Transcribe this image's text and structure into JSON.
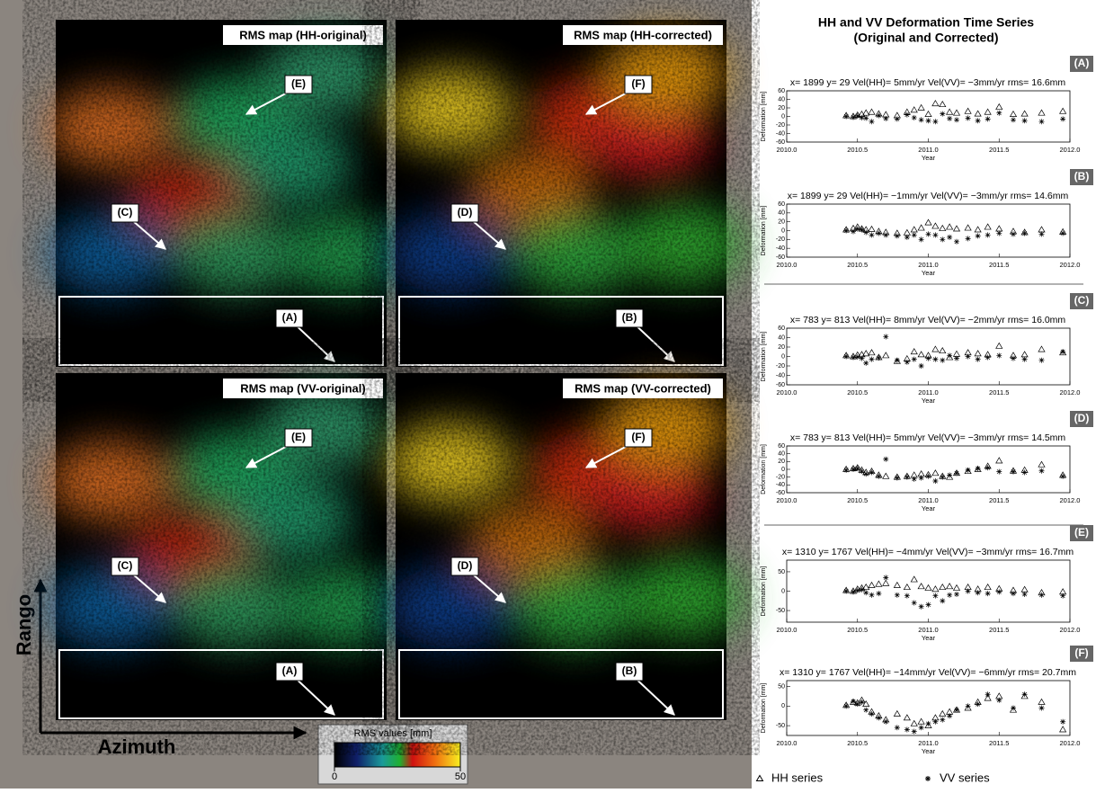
{
  "maps": {
    "panels": [
      {
        "title": "RMS map (HH-original)",
        "labels": [
          "(E)",
          "(C)",
          "(A)"
        ]
      },
      {
        "title": "RMS map (HH-corrected)",
        "labels": [
          "(F)",
          "(D)",
          "(B)"
        ]
      },
      {
        "title": "RMS map (VV-original)",
        "labels": [
          "(E)",
          "(C)",
          "(A)"
        ]
      },
      {
        "title": "RMS map (VV-corrected)",
        "labels": [
          "(F)",
          "(D)",
          "(B)"
        ]
      }
    ],
    "axis_labels": {
      "vertical": "Rango",
      "horizontal": "Azimuth"
    },
    "colorbar": {
      "title": "RMS values [mm]",
      "lim": [
        0,
        50
      ],
      "ticks": [
        0,
        50
      ]
    }
  },
  "figure": {
    "title": "HH and VV Deformation Time Series",
    "subtitle": "(Original and Corrected)"
  },
  "chart_data": [
    {
      "type": "scatter",
      "panel_label": "(A)",
      "title": "x= 1899 y= 29 Vel(HH)= 5mm/yr Vel(VV)= −3mm/yr rms= 16.6mm",
      "xlabel": "Year",
      "ylabel": "Deformation [mm]",
      "x": [
        2010.42,
        2010.47,
        2010.5,
        2010.53,
        2010.56,
        2010.6,
        2010.65,
        2010.7,
        2010.78,
        2010.85,
        2010.9,
        2010.95,
        2011.0,
        2011.05,
        2011.1,
        2011.15,
        2011.2,
        2011.28,
        2011.35,
        2011.42,
        2011.5,
        2011.6,
        2011.68,
        2011.8,
        2011.95
      ],
      "xlim": [
        2010,
        2012
      ],
      "xticks": [
        {
          "value": 2010,
          "label": "2010.0"
        },
        2010.5,
        {
          "value": 2011,
          "label": "2011.0"
        },
        2011.5,
        {
          "value": 2012,
          "label": "2012.0"
        }
      ],
      "ylim": [
        -60,
        60
      ],
      "yticks": [
        -60,
        -40,
        -20,
        0,
        20,
        40,
        60
      ],
      "series": [
        {
          "name": "HH series",
          "marker": "triangle",
          "values": [
            2,
            0,
            3,
            5,
            8,
            10,
            6,
            4,
            2,
            10,
            15,
            20,
            5,
            30,
            28,
            10,
            8,
            12,
            6,
            10,
            22,
            5,
            6,
            8,
            12
          ]
        },
        {
          "name": "VV series",
          "marker": "star",
          "values": [
            0,
            -2,
            1,
            -3,
            -4,
            -12,
            2,
            -5,
            -6,
            4,
            -3,
            -8,
            -10,
            -12,
            6,
            -5,
            -8,
            -4,
            -10,
            -6,
            8,
            -8,
            -10,
            -12,
            -6
          ]
        }
      ]
    },
    {
      "type": "scatter",
      "panel_label": "(B)",
      "title": "x= 1899 y= 29 Vel(HH)= −1mm/yr Vel(VV)= −3mm/yr rms= 14.6mm",
      "xlabel": "Year",
      "ylabel": "Deformation [mm]",
      "x": [
        2010.42,
        2010.47,
        2010.5,
        2010.53,
        2010.56,
        2010.6,
        2010.65,
        2010.7,
        2010.78,
        2010.85,
        2010.9,
        2010.95,
        2011.0,
        2011.05,
        2011.1,
        2011.15,
        2011.2,
        2011.28,
        2011.35,
        2011.42,
        2011.5,
        2011.6,
        2011.68,
        2011.8,
        2011.95
      ],
      "xlim": [
        2010,
        2012
      ],
      "xticks": [
        {
          "value": 2010,
          "label": "2010.0"
        },
        2010.5,
        {
          "value": 2011,
          "label": "2011.0"
        },
        2011.5,
        {
          "value": 2012,
          "label": "2012.0"
        }
      ],
      "ylim": [
        -60,
        60
      ],
      "yticks": [
        -60,
        -40,
        -20,
        0,
        20,
        40,
        60
      ],
      "series": [
        {
          "name": "HH series",
          "marker": "triangle",
          "values": [
            2,
            5,
            8,
            4,
            2,
            3,
            -2,
            -4,
            -6,
            -5,
            2,
            6,
            18,
            10,
            5,
            8,
            4,
            6,
            2,
            8,
            4,
            -2,
            -4,
            2,
            -3
          ]
        },
        {
          "name": "VV series",
          "marker": "star",
          "values": [
            0,
            -2,
            4,
            2,
            -4,
            -10,
            -6,
            -10,
            -12,
            -15,
            -10,
            -20,
            -8,
            -10,
            -20,
            -15,
            -25,
            -18,
            -12,
            -10,
            -6,
            -8,
            -6,
            -8,
            -6
          ]
        }
      ]
    },
    {
      "type": "scatter",
      "panel_label": "(C)",
      "title": "x= 783 y= 813 Vel(HH)= 8mm/yr Vel(VV)= −2mm/yr rms= 16.0mm",
      "xlabel": "Year",
      "ylabel": "Deformation [mm]",
      "x": [
        2010.42,
        2010.47,
        2010.5,
        2010.53,
        2010.56,
        2010.6,
        2010.65,
        2010.7,
        2010.78,
        2010.85,
        2010.9,
        2010.95,
        2011.0,
        2011.05,
        2011.1,
        2011.15,
        2011.2,
        2011.28,
        2011.35,
        2011.42,
        2011.5,
        2011.6,
        2011.68,
        2011.8,
        2011.95
      ],
      "xlim": [
        2010,
        2012
      ],
      "xticks": [
        {
          "value": 2010,
          "label": "2010.0"
        },
        2010.5,
        {
          "value": 2011,
          "label": "2011.0"
        },
        2011.5,
        {
          "value": 2012,
          "label": "2012.0"
        }
      ],
      "ylim": [
        -60,
        60
      ],
      "yticks": [
        -60,
        -40,
        -20,
        0,
        20,
        40,
        60
      ],
      "series": [
        {
          "name": "HH series",
          "marker": "triangle",
          "values": [
            2,
            0,
            3,
            4,
            6,
            8,
            -2,
            2,
            -10,
            -5,
            10,
            4,
            2,
            15,
            12,
            -2,
            5,
            8,
            6,
            4,
            22,
            2,
            4,
            15,
            8
          ]
        },
        {
          "name": "VV series",
          "marker": "star",
          "values": [
            0,
            -2,
            -1,
            -4,
            -14,
            -6,
            -3,
            42,
            -8,
            -12,
            -6,
            -20,
            -4,
            -6,
            -8,
            2,
            -4,
            0,
            -6,
            -2,
            2,
            -4,
            -6,
            -8,
            10
          ]
        }
      ]
    },
    {
      "type": "scatter",
      "panel_label": "(D)",
      "title": "x= 783 y= 813 Vel(HH)= 5mm/yr Vel(VV)= −3mm/yr rms= 14.5mm",
      "xlabel": "Year",
      "ylabel": "Deformation [mm]",
      "x": [
        2010.42,
        2010.47,
        2010.5,
        2010.53,
        2010.56,
        2010.6,
        2010.65,
        2010.7,
        2010.78,
        2010.85,
        2010.9,
        2010.95,
        2011.0,
        2011.05,
        2011.1,
        2011.15,
        2011.2,
        2011.28,
        2011.35,
        2011.42,
        2011.5,
        2011.6,
        2011.68,
        2011.8,
        2011.95
      ],
      "xlim": [
        2010,
        2012
      ],
      "xticks": [
        {
          "value": 2010,
          "label": "2010.0"
        },
        2010.5,
        {
          "value": 2011,
          "label": "2011.0"
        },
        2011.5,
        {
          "value": 2012,
          "label": "2012.0"
        }
      ],
      "ylim": [
        -60,
        60
      ],
      "yticks": [
        -60,
        -40,
        -20,
        0,
        20,
        40,
        60
      ],
      "series": [
        {
          "name": "HH series",
          "marker": "triangle",
          "values": [
            0,
            2,
            4,
            -2,
            -8,
            -5,
            -15,
            -18,
            -20,
            -18,
            -15,
            -12,
            -14,
            -10,
            -18,
            -20,
            -10,
            -5,
            0,
            8,
            22,
            -4,
            -2,
            12,
            -15
          ]
        },
        {
          "name": "VV series",
          "marker": "star",
          "values": [
            -2,
            0,
            2,
            -5,
            -12,
            -8,
            -18,
            26,
            -22,
            -20,
            -25,
            -22,
            -18,
            -30,
            -20,
            -15,
            -10,
            -2,
            2,
            4,
            -6,
            -6,
            -8,
            -4,
            -18
          ]
        }
      ]
    },
    {
      "type": "scatter",
      "panel_label": "(E)",
      "title": "x= 1310 y= 1767 Vel(HH)= −4mm/yr Vel(VV)= −3mm/yr rms= 16.7mm",
      "xlabel": "Year",
      "ylabel": "Deformation [mm]",
      "x": [
        2010.42,
        2010.47,
        2010.5,
        2010.53,
        2010.56,
        2010.6,
        2010.65,
        2010.7,
        2010.78,
        2010.85,
        2010.9,
        2010.95,
        2011.0,
        2011.05,
        2011.1,
        2011.15,
        2011.2,
        2011.28,
        2011.35,
        2011.42,
        2011.5,
        2011.6,
        2011.68,
        2011.8,
        2011.95
      ],
      "xlim": [
        2010,
        2012
      ],
      "xticks": [
        {
          "value": 2010,
          "label": "2010.0"
        },
        2010.5,
        {
          "value": 2011,
          "label": "2011.0"
        },
        2011.5,
        {
          "value": 2012,
          "label": "2012.0"
        }
      ],
      "ylim": [
        -80,
        80
      ],
      "yticks": [
        -50,
        0,
        50
      ],
      "series": [
        {
          "name": "HH series",
          "marker": "triangle",
          "values": [
            2,
            0,
            5,
            8,
            10,
            15,
            18,
            20,
            15,
            10,
            30,
            12,
            8,
            5,
            10,
            12,
            8,
            10,
            5,
            10,
            6,
            2,
            4,
            -4,
            -2
          ]
        },
        {
          "name": "VV series",
          "marker": "star",
          "values": [
            0,
            -2,
            2,
            4,
            -4,
            -10,
            -6,
            35,
            -10,
            -12,
            -30,
            -40,
            -35,
            -12,
            -25,
            -10,
            -8,
            0,
            -4,
            -6,
            -2,
            -6,
            -8,
            -10,
            -12
          ]
        }
      ]
    },
    {
      "type": "scatter",
      "panel_label": "(F)",
      "title": "x= 1310 y= 1767 Vel(HH)= −14mm/yr Vel(VV)= −6mm/yr rms= 20.7mm",
      "xlabel": "Year",
      "ylabel": "Deformation [mm]",
      "x": [
        2010.42,
        2010.47,
        2010.5,
        2010.53,
        2010.56,
        2010.6,
        2010.65,
        2010.7,
        2010.78,
        2010.85,
        2010.9,
        2010.95,
        2011.0,
        2011.05,
        2011.1,
        2011.15,
        2011.2,
        2011.28,
        2011.35,
        2011.42,
        2011.5,
        2011.6,
        2011.68,
        2011.8,
        2011.95
      ],
      "xlim": [
        2010,
        2012
      ],
      "xticks": [
        {
          "value": 2010,
          "label": "2010.0"
        },
        2010.5,
        {
          "value": 2011,
          "label": "2011.0"
        },
        2011.5,
        {
          "value": 2012,
          "label": "2012.0"
        }
      ],
      "ylim": [
        -75,
        65
      ],
      "yticks": [
        -50,
        0,
        50
      ],
      "series": [
        {
          "name": "HH series",
          "marker": "triangle",
          "values": [
            2,
            10,
            8,
            15,
            5,
            -15,
            -25,
            -35,
            -20,
            -30,
            -45,
            -40,
            -50,
            -30,
            -20,
            -15,
            -10,
            -5,
            10,
            20,
            25,
            -10,
            25,
            10,
            -60
          ]
        },
        {
          "name": "VV series",
          "marker": "star",
          "values": [
            0,
            12,
            5,
            10,
            -10,
            -20,
            -30,
            -40,
            -55,
            -60,
            -65,
            -55,
            -45,
            -40,
            -35,
            -25,
            -10,
            0,
            5,
            30,
            15,
            -5,
            30,
            -5,
            -40
          ]
        }
      ]
    }
  ]
}
